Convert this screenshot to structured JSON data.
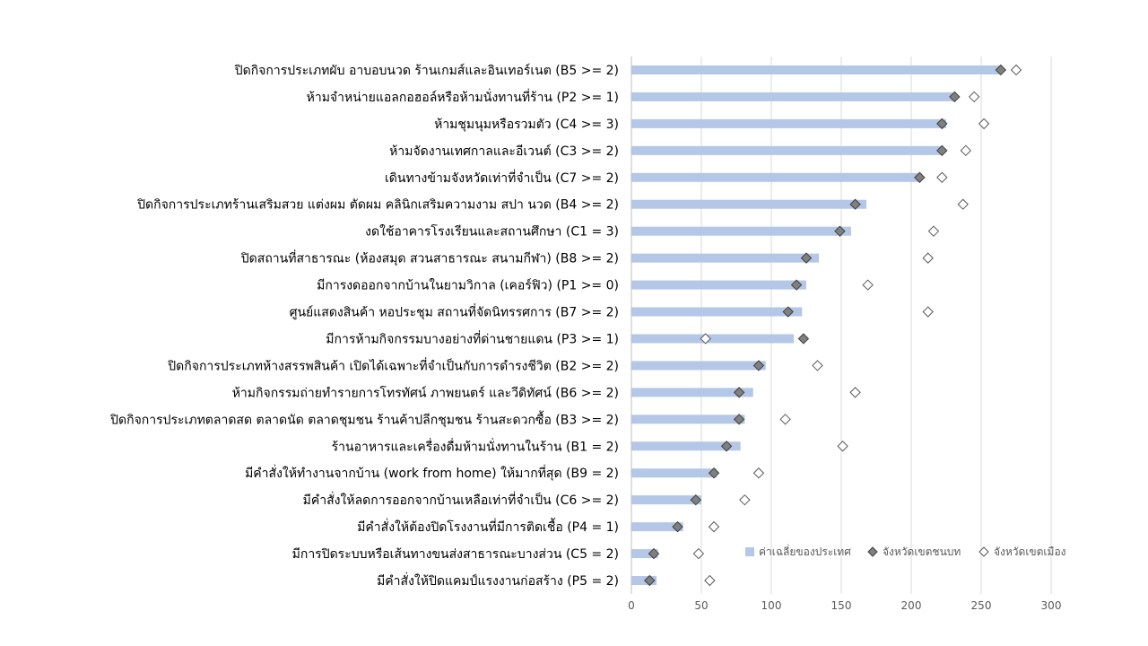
{
  "chart_data": {
    "type": "bar",
    "orientation": "horizontal",
    "categories": [
      "ปิดกิจการประเภทผับ อาบอบนวด ร้านเกมส์และอินเทอร์เนต (B5 >= 2)",
      "ห้ามจำหน่ายแอลกอฮอล์หรือห้ามนั่งทานที่ร้าน (P2 >= 1)",
      "ห้ามชุมนุมหรือรวมตัว (C4 >= 3)",
      "ห้ามจัดงานเทศกาลและอีเวนต์ (C3 >= 2)",
      "เดินทางข้ามจังหวัดเท่าที่จำเป็น (C7 >= 2)",
      "ปิดกิจการประเภทร้านเสริมสวย แต่งผม ตัดผม คลินิกเสริมความงาม สปา นวด (B4 >= 2)",
      "งดใช้อาคารโรงเรียนและสถานศึกษา (C1 = 3)",
      "ปิดสถานที่สาธารณะ (ห้องสมุด สวนสาธารณะ สนามกีฬา) (B8 >= 2)",
      "มีการงดออกจากบ้านในยามวิกาล (เคอร์ฟิว) (P1 >= 0)",
      "ศูนย์แสดงสินค้า หอประชุม สถานที่จัดนิทรรศการ (B7 >= 2)",
      "มีการห้ามกิจกรรมบางอย่างที่ด่านชายแดน (P3 >= 1)",
      "ปิดกิจการประเภทห้างสรรพสินค้า เปิดได้เฉพาะที่จำเป็นกับการดำรงชีวิต (B2 >= 2)",
      "ห้ามกิจกรรมถ่ายทำรายการโทรทัศน์ ภาพยนตร์ และวีดิทัศน์ (B6 >= 2)",
      "ปิดกิจการประเภทตลาดสด ตลาดนัด ตลาดชุมชน ร้านค้าปลีกชุมชน ร้านสะดวกซื้อ (B3 >= 2)",
      "ร้านอาหารและเครื่องดื่มห้ามนั่งทานในร้าน (B1 = 2)",
      "มีคำสั่งให้ทำงานจากบ้าน (work from home) ให้มากที่สุด (B9 = 2)",
      "มีคำสั่งให้ลดการออกจากบ้านเหลือเท่าที่จำเป็น (C6 >= 2)",
      "มีคำสั่งให้ต้องปิดโรงงานที่มีการติดเชื้อ (P4 = 1)",
      "มีการปิดระบบหรือเส้นทางขนส่งสาธารณะบางส่วน (C5 = 2)",
      "มีคำสั่งให้ปิดแคมป์แรงงานก่อสร้าง (P5 = 2)"
    ],
    "series": [
      {
        "name": "ค่าเฉลี่ยของประเทศ",
        "mark": "bar",
        "values": [
          265,
          232,
          225,
          223,
          207,
          168,
          157,
          134,
          125,
          122,
          116,
          96,
          87,
          81,
          78,
          61,
          50,
          37,
          19,
          18
        ]
      },
      {
        "name": "จังหวัดเขตชนบท",
        "mark": "filled-diamond",
        "values": [
          264,
          231,
          222,
          222,
          206,
          160,
          149,
          125,
          118,
          112,
          123,
          91,
          77,
          77,
          68,
          59,
          46,
          33,
          16,
          13
        ]
      },
      {
        "name": "จังหวัดเขตเมือง",
        "mark": "open-diamond",
        "values": [
          275,
          245,
          252,
          239,
          222,
          237,
          216,
          212,
          169,
          212,
          53,
          133,
          160,
          110,
          151,
          91,
          81,
          59,
          48,
          56
        ]
      }
    ],
    "xlim": [
      0,
      300
    ],
    "xticks": [
      "0",
      "50",
      "100",
      "150",
      "200",
      "250",
      "300"
    ],
    "grid": true,
    "legend_position": "bottom-right",
    "colors": {
      "bar": "#b4c7e7",
      "filled_diamond": "#808080",
      "diamond_stroke": "#404040",
      "open_diamond_stroke": "#595959",
      "grid": "#d9d9d9",
      "axis": "#bfbfbf"
    }
  }
}
